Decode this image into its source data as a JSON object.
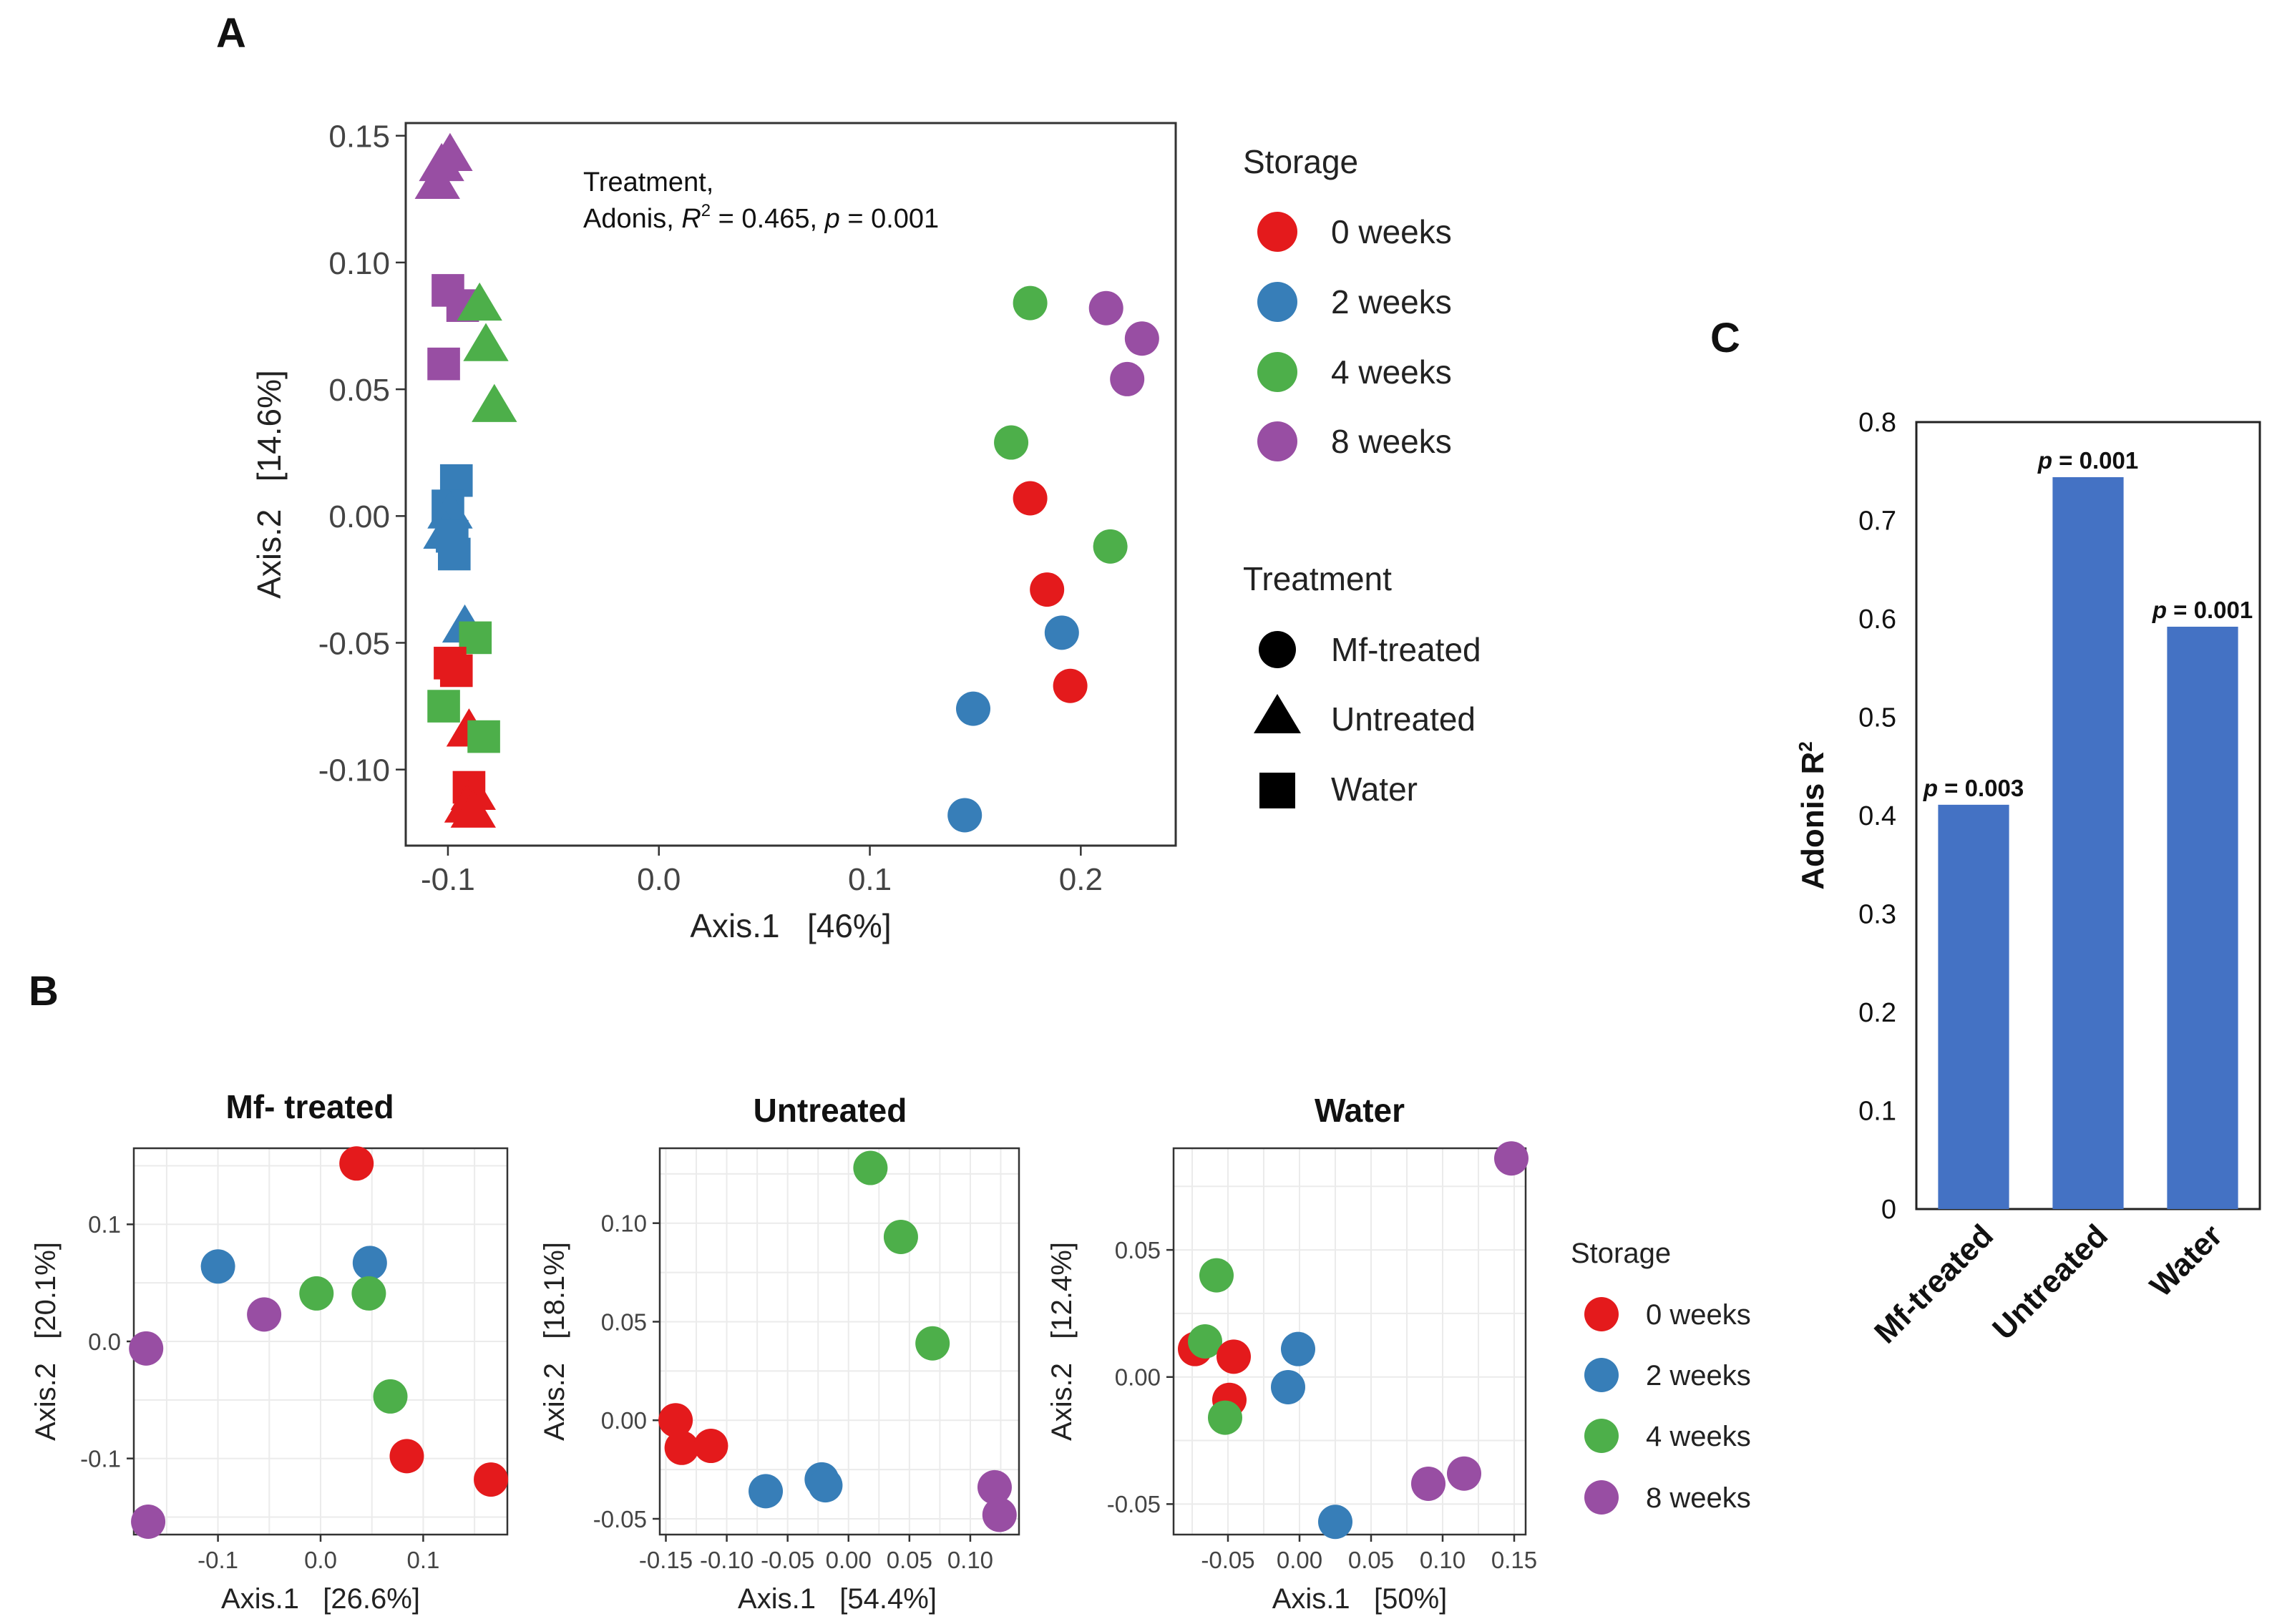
{
  "colors": {
    "0 weeks": "#E41A1C",
    "2 weeks": "#377EB8",
    "4 weeks": "#4DAF4A",
    "8 weeks": "#984EA3",
    "bar": "#4472C4"
  },
  "panel_labels": {
    "a": "A",
    "b": "B",
    "c": "C"
  },
  "chart_data": [
    {
      "id": "A",
      "type": "scatter",
      "title": "",
      "xlabel": "Axis.1   [46%]",
      "ylabel": "Axis.2   [14.6%]",
      "xlim": [
        -0.12,
        0.245
      ],
      "ylim": [
        -0.13,
        0.155
      ],
      "xticks": [
        -0.1,
        0.0,
        0.1,
        0.2
      ],
      "xtick_labels": [
        "-0.1",
        "0.0",
        "0.1",
        "0.2"
      ],
      "yticks": [
        -0.1,
        -0.05,
        0.0,
        0.05,
        0.1,
        0.15
      ],
      "ytick_labels": [
        "-0.10",
        "-0.05",
        "0.00",
        "0.05",
        "0.10",
        "0.15"
      ],
      "annotation": {
        "line1": "Treatment,",
        "line2_prefix": "Adonis, ",
        "line2_stat": "R",
        "line2_sup": "2",
        "line2_mid": " = 0.465, ",
        "line2_p": "p",
        "line2_end": " = 0.001"
      },
      "legend_storage": {
        "title": "Storage",
        "items": [
          "0 weeks",
          "2 weeks",
          "4 weeks",
          "8 weeks"
        ]
      },
      "legend_treatment": {
        "title": "Treatment",
        "items": [
          {
            "label": "Mf-treated",
            "shape": "circle"
          },
          {
            "label": "Untreated",
            "shape": "triangle"
          },
          {
            "label": "Water",
            "shape": "square"
          }
        ]
      },
      "points": [
        {
          "x": -0.103,
          "y": 0.139,
          "storage": "8 weeks",
          "shape": "triangle"
        },
        {
          "x": -0.099,
          "y": 0.143,
          "storage": "8 weeks",
          "shape": "triangle"
        },
        {
          "x": -0.105,
          "y": 0.132,
          "storage": "8 weeks",
          "shape": "triangle"
        },
        {
          "x": -0.1,
          "y": 0.089,
          "storage": "8 weeks",
          "shape": "square"
        },
        {
          "x": -0.093,
          "y": 0.083,
          "storage": "8 weeks",
          "shape": "square"
        },
        {
          "x": -0.102,
          "y": 0.06,
          "storage": "8 weeks",
          "shape": "square"
        },
        {
          "x": -0.085,
          "y": 0.084,
          "storage": "4 weeks",
          "shape": "triangle"
        },
        {
          "x": -0.082,
          "y": 0.068,
          "storage": "4 weeks",
          "shape": "triangle"
        },
        {
          "x": -0.078,
          "y": 0.044,
          "storage": "4 weeks",
          "shape": "triangle"
        },
        {
          "x": -0.096,
          "y": 0.014,
          "storage": "2 weeks",
          "shape": "square"
        },
        {
          "x": -0.1,
          "y": 0.004,
          "storage": "2 weeks",
          "shape": "square"
        },
        {
          "x": -0.099,
          "y": 0.002,
          "storage": "2 weeks",
          "shape": "triangle"
        },
        {
          "x": -0.101,
          "y": -0.006,
          "storage": "2 weeks",
          "shape": "triangle"
        },
        {
          "x": -0.098,
          "y": -0.008,
          "storage": "2 weeks",
          "shape": "square"
        },
        {
          "x": -0.097,
          "y": -0.015,
          "storage": "2 weeks",
          "shape": "square"
        },
        {
          "x": -0.092,
          "y": -0.043,
          "storage": "2 weeks",
          "shape": "triangle"
        },
        {
          "x": -0.087,
          "y": -0.048,
          "storage": "4 weeks",
          "shape": "square"
        },
        {
          "x": -0.099,
          "y": -0.058,
          "storage": "0 weeks",
          "shape": "square"
        },
        {
          "x": -0.096,
          "y": -0.061,
          "storage": "0 weeks",
          "shape": "square"
        },
        {
          "x": -0.102,
          "y": -0.075,
          "storage": "4 weeks",
          "shape": "square"
        },
        {
          "x": -0.09,
          "y": -0.084,
          "storage": "0 weeks",
          "shape": "triangle"
        },
        {
          "x": -0.083,
          "y": -0.087,
          "storage": "4 weeks",
          "shape": "square"
        },
        {
          "x": -0.09,
          "y": -0.107,
          "storage": "0 weeks",
          "shape": "square"
        },
        {
          "x": -0.088,
          "y": -0.109,
          "storage": "0 weeks",
          "shape": "triangle"
        },
        {
          "x": -0.091,
          "y": -0.114,
          "storage": "0 weeks",
          "shape": "triangle"
        },
        {
          "x": -0.088,
          "y": -0.116,
          "storage": "0 weeks",
          "shape": "triangle"
        },
        {
          "x": 0.176,
          "y": 0.084,
          "storage": "4 weeks",
          "shape": "circle"
        },
        {
          "x": 0.212,
          "y": 0.082,
          "storage": "8 weeks",
          "shape": "circle"
        },
        {
          "x": 0.229,
          "y": 0.07,
          "storage": "8 weeks",
          "shape": "circle"
        },
        {
          "x": 0.222,
          "y": 0.054,
          "storage": "8 weeks",
          "shape": "circle"
        },
        {
          "x": 0.167,
          "y": 0.029,
          "storage": "4 weeks",
          "shape": "circle"
        },
        {
          "x": 0.176,
          "y": 0.007,
          "storage": "0 weeks",
          "shape": "circle"
        },
        {
          "x": 0.214,
          "y": -0.012,
          "storage": "4 weeks",
          "shape": "circle"
        },
        {
          "x": 0.184,
          "y": -0.029,
          "storage": "0 weeks",
          "shape": "circle"
        },
        {
          "x": 0.191,
          "y": -0.046,
          "storage": "2 weeks",
          "shape": "circle"
        },
        {
          "x": 0.195,
          "y": -0.067,
          "storage": "0 weeks",
          "shape": "circle"
        },
        {
          "x": 0.149,
          "y": -0.076,
          "storage": "2 weeks",
          "shape": "circle"
        },
        {
          "x": 0.145,
          "y": -0.118,
          "storage": "2 weeks",
          "shape": "circle"
        }
      ]
    },
    {
      "id": "B1",
      "type": "scatter",
      "title": "Mf- treated",
      "xlabel": "Axis.1   [26.6%]",
      "ylabel": "Axis.2   [20.1%]",
      "xlim": [
        -0.182,
        0.182
      ],
      "ylim": [
        -0.165,
        0.165
      ],
      "xticks": [
        -0.1,
        0.0,
        0.1
      ],
      "xtick_labels": [
        "-0.1",
        "0.0",
        "0.1"
      ],
      "yticks": [
        -0.1,
        0.0,
        0.1
      ],
      "ytick_labels": [
        "-0.1",
        "0.0",
        "0.1"
      ],
      "points": [
        {
          "x": 0.035,
          "y": 0.152,
          "storage": "0 weeks"
        },
        {
          "x": -0.1,
          "y": 0.064,
          "storage": "2 weeks"
        },
        {
          "x": 0.048,
          "y": 0.067,
          "storage": "2 weeks"
        },
        {
          "x": -0.055,
          "y": 0.023,
          "storage": "8 weeks"
        },
        {
          "x": -0.004,
          "y": 0.041,
          "storage": "4 weeks"
        },
        {
          "x": 0.047,
          "y": 0.041,
          "storage": "4 weeks"
        },
        {
          "x": -0.17,
          "y": -0.006,
          "storage": "8 weeks"
        },
        {
          "x": 0.068,
          "y": -0.047,
          "storage": "4 weeks"
        },
        {
          "x": 0.084,
          "y": -0.098,
          "storage": "0 weeks"
        },
        {
          "x": 0.166,
          "y": -0.118,
          "storage": "0 weeks"
        },
        {
          "x": -0.168,
          "y": -0.154,
          "storage": "8 weeks"
        }
      ]
    },
    {
      "id": "B2",
      "type": "scatter",
      "title": "Untreated",
      "xlabel": "Axis.1   [54.4%]",
      "ylabel": "Axis.2   [18.1%]",
      "xlim": [
        -0.155,
        0.14
      ],
      "ylim": [
        -0.058,
        0.138
      ],
      "xticks": [
        -0.15,
        -0.1,
        -0.05,
        0.0,
        0.05,
        0.1
      ],
      "xtick_labels": [
        "-0.15",
        "-0.10",
        "-0.05",
        "0.00",
        "0.05",
        "0.10"
      ],
      "yticks": [
        -0.05,
        0.0,
        0.05,
        0.1
      ],
      "ytick_labels": [
        "-0.05",
        "0.00",
        "0.05",
        "0.10"
      ],
      "points": [
        {
          "x": 0.018,
          "y": 0.128,
          "storage": "4 weeks"
        },
        {
          "x": 0.043,
          "y": 0.093,
          "storage": "4 weeks"
        },
        {
          "x": 0.069,
          "y": 0.039,
          "storage": "4 weeks"
        },
        {
          "x": -0.142,
          "y": 0.0,
          "storage": "0 weeks"
        },
        {
          "x": -0.137,
          "y": -0.014,
          "storage": "0 weeks"
        },
        {
          "x": -0.113,
          "y": -0.013,
          "storage": "0 weeks"
        },
        {
          "x": -0.068,
          "y": -0.036,
          "storage": "2 weeks"
        },
        {
          "x": -0.022,
          "y": -0.03,
          "storage": "2 weeks"
        },
        {
          "x": -0.019,
          "y": -0.033,
          "storage": "2 weeks"
        },
        {
          "x": 0.12,
          "y": -0.034,
          "storage": "8 weeks"
        },
        {
          "x": 0.124,
          "y": -0.048,
          "storage": "8 weeks"
        }
      ]
    },
    {
      "id": "B3",
      "type": "scatter",
      "title": "Water",
      "xlabel": "Axis.1   [50%]",
      "ylabel": "Axis.2   [12.4%]",
      "xlim": [
        -0.088,
        0.158
      ],
      "ylim": [
        -0.062,
        0.09
      ],
      "xticks": [
        -0.05,
        0.0,
        0.05,
        0.1,
        0.15
      ],
      "xtick_labels": [
        "-0.05",
        "0.00",
        "0.05",
        "0.10",
        "0.15"
      ],
      "yticks": [
        -0.05,
        0.0,
        0.05
      ],
      "ytick_labels": [
        "-0.05",
        "0.00",
        "0.05"
      ],
      "points": [
        {
          "x": 0.148,
          "y": 0.086,
          "storage": "8 weeks"
        },
        {
          "x": -0.058,
          "y": 0.04,
          "storage": "4 weeks"
        },
        {
          "x": -0.073,
          "y": 0.011,
          "storage": "0 weeks"
        },
        {
          "x": -0.066,
          "y": 0.014,
          "storage": "4 weeks"
        },
        {
          "x": -0.046,
          "y": 0.008,
          "storage": "0 weeks"
        },
        {
          "x": -0.001,
          "y": 0.011,
          "storage": "2 weeks"
        },
        {
          "x": -0.049,
          "y": -0.009,
          "storage": "0 weeks"
        },
        {
          "x": -0.008,
          "y": -0.004,
          "storage": "2 weeks"
        },
        {
          "x": -0.052,
          "y": -0.016,
          "storage": "4 weeks"
        },
        {
          "x": 0.09,
          "y": -0.042,
          "storage": "8 weeks"
        },
        {
          "x": 0.115,
          "y": -0.038,
          "storage": "8 weeks"
        },
        {
          "x": 0.025,
          "y": -0.057,
          "storage": "2 weeks"
        }
      ],
      "legend_storage": {
        "title": "Storage",
        "items": [
          "0 weeks",
          "2 weeks",
          "4 weeks",
          "8 weeks"
        ]
      }
    },
    {
      "id": "C",
      "type": "bar",
      "title": "",
      "categories": [
        "Mf-treated",
        "Untreated",
        "Water"
      ],
      "values": [
        0.411,
        0.744,
        0.592
      ],
      "p_labels": [
        "p = 0.003",
        "p = 0.001",
        "p = 0.001"
      ],
      "ylabel": "Adonis R",
      "ylabel_sup": "2",
      "ylim": [
        0,
        0.8
      ],
      "yticks": [
        0,
        0.1,
        0.2,
        0.3,
        0.4,
        0.5,
        0.6,
        0.7,
        0.8
      ],
      "ytick_labels": [
        "0",
        "0.1",
        "0.2",
        "0.3",
        "0.4",
        "0.5",
        "0.6",
        "0.7",
        "0.8"
      ]
    }
  ]
}
